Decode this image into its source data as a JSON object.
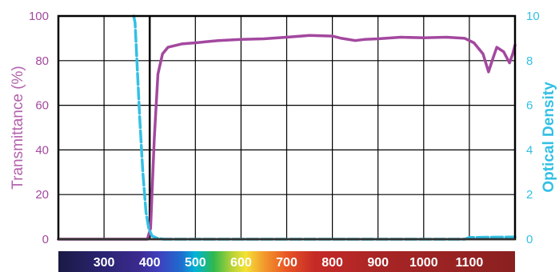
{
  "chart_data": {
    "type": "line",
    "ylabel_left": "Transmittance (%)",
    "ylabel_right": "Optical Density",
    "xlim": [
      200,
      1200
    ],
    "ylim_left": [
      0,
      100
    ],
    "ylim_right": [
      0,
      10
    ],
    "grid": true,
    "x_gridlines": [
      300,
      400,
      500,
      600,
      700,
      800,
      900,
      1000,
      1100
    ],
    "y_ticks_left": [
      0,
      20,
      40,
      60,
      80,
      100
    ],
    "y_ticks_right": [
      0,
      2,
      4,
      6,
      8,
      10
    ],
    "wavelength_labels": [
      {
        "value": 300,
        "label": "300"
      },
      {
        "value": 400,
        "label": "400"
      },
      {
        "value": 500,
        "label": "500"
      },
      {
        "value": 600,
        "label": "600"
      },
      {
        "value": 700,
        "label": "700"
      },
      {
        "value": 800,
        "label": "800"
      },
      {
        "value": 900,
        "label": "900"
      },
      {
        "value": 1000,
        "label": "1000"
      },
      {
        "value": 1100,
        "label": "1100"
      }
    ],
    "series": [
      {
        "axis": "left",
        "color": "#a3489f",
        "points": [
          [
            200,
            0
          ],
          [
            395,
            0
          ],
          [
            402,
            5
          ],
          [
            410,
            45
          ],
          [
            418,
            74
          ],
          [
            428,
            83
          ],
          [
            440,
            86
          ],
          [
            470,
            87.5
          ],
          [
            500,
            88
          ],
          [
            550,
            89
          ],
          [
            600,
            89.5
          ],
          [
            650,
            89.8
          ],
          [
            700,
            90.5
          ],
          [
            750,
            91.3
          ],
          [
            800,
            91
          ],
          [
            820,
            90
          ],
          [
            850,
            89
          ],
          [
            870,
            89.5
          ],
          [
            900,
            89.8
          ],
          [
            950,
            90.5
          ],
          [
            1000,
            90.2
          ],
          [
            1050,
            90.5
          ],
          [
            1090,
            90
          ],
          [
            1110,
            88
          ],
          [
            1130,
            83
          ],
          [
            1142,
            75
          ],
          [
            1150,
            80
          ],
          [
            1160,
            86
          ],
          [
            1175,
            84
          ],
          [
            1188,
            79
          ],
          [
            1195,
            83
          ],
          [
            1200,
            87
          ]
        ]
      },
      {
        "axis": "right",
        "color": "#33c0e4",
        "dashed": true,
        "points": [
          [
            365,
            10
          ],
          [
            368,
            9.7
          ],
          [
            372,
            8
          ],
          [
            378,
            5.5
          ],
          [
            385,
            3
          ],
          [
            392,
            1.2
          ],
          [
            398,
            0.45
          ],
          [
            405,
            0.15
          ],
          [
            415,
            0.05
          ],
          [
            430,
            0
          ],
          [
            1090,
            0
          ],
          [
            1100,
            0.08
          ],
          [
            1200,
            0.1
          ]
        ]
      }
    ],
    "colorbar": {
      "stops": [
        {
          "value": 200,
          "color": "#1a1a45"
        },
        {
          "value": 300,
          "color": "#2a2472"
        },
        {
          "value": 375,
          "color": "#3a2a8e"
        },
        {
          "value": 420,
          "color": "#3f3fbd"
        },
        {
          "value": 470,
          "color": "#1e6ed0"
        },
        {
          "value": 500,
          "color": "#00b4d8"
        },
        {
          "value": 540,
          "color": "#2fb84d"
        },
        {
          "value": 580,
          "color": "#b6d237"
        },
        {
          "value": 610,
          "color": "#f4e234"
        },
        {
          "value": 650,
          "color": "#f39a2d"
        },
        {
          "value": 700,
          "color": "#e85624"
        },
        {
          "value": 760,
          "color": "#c62a27"
        },
        {
          "value": 900,
          "color": "#a92525"
        },
        {
          "value": 1200,
          "color": "#8a2020"
        }
      ]
    },
    "colors": {
      "left_axis": "#a3489f",
      "right_axis": "#33c0e4",
      "grid": "#000000",
      "label_left": "#b361ad",
      "label_right": "#33c0e4"
    }
  }
}
